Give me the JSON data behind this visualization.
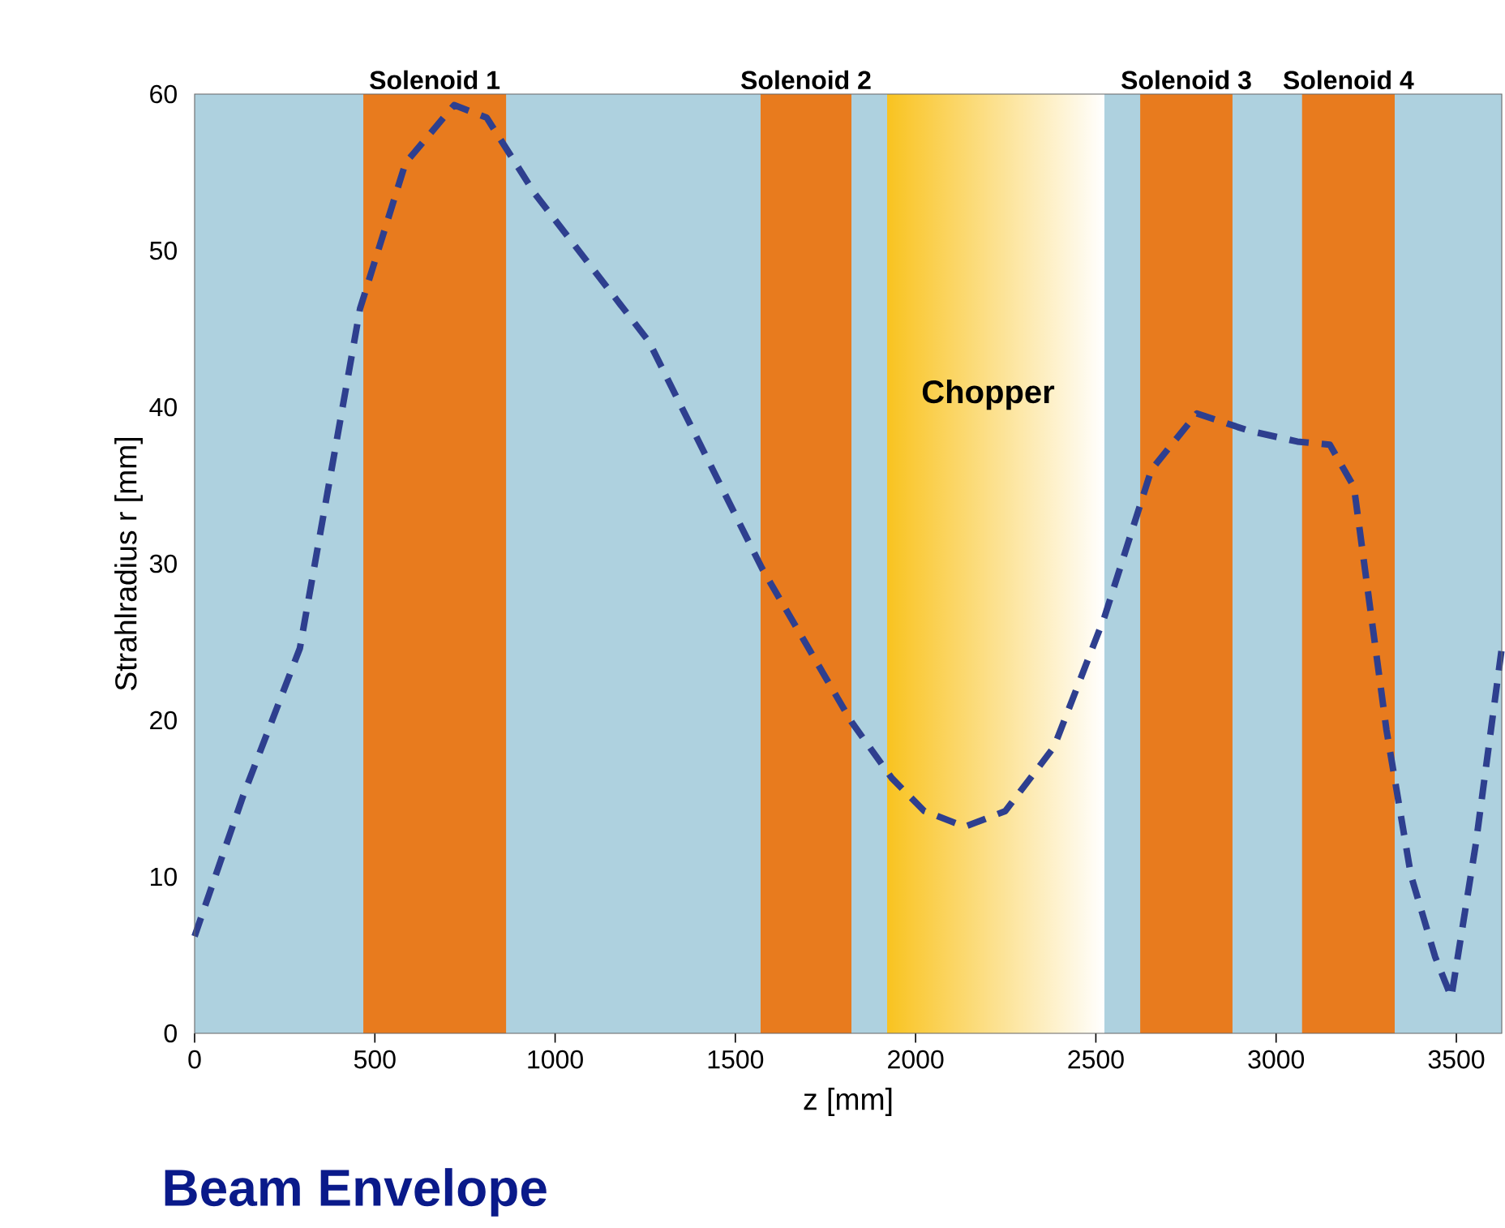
{
  "chart_data": {
    "type": "line",
    "title": "Beam Envelope",
    "xlabel": "z [mm]",
    "ylabel": "Strahlradius r [mm]",
    "x": [
      0,
      135,
      292,
      459,
      585,
      720,
      810,
      945,
      1260,
      1574,
      1822,
      1934,
      2024,
      2137,
      2249,
      2384,
      2524,
      2654,
      2780,
      2924,
      3059,
      3149,
      3216,
      3306,
      3374,
      3441,
      3486,
      3554,
      3626
    ],
    "series": [
      {
        "color": "#2e3f8f",
        "values": [
          6.2,
          15.2,
          24.6,
          46.3,
          55.6,
          59.3,
          58.5,
          53.6,
          44.2,
          29.7,
          19.9,
          16.3,
          14.2,
          13.2,
          14.2,
          18.3,
          26.6,
          36.0,
          39.6,
          38.5,
          37.8,
          37.6,
          34.9,
          19.4,
          10.1,
          4.9,
          2.3,
          12.1,
          24.6
        ]
      }
    ],
    "line_style": "dashed",
    "marker": "none",
    "xlim": [
      0,
      3626
    ],
    "ylim": [
      0,
      60
    ],
    "xticks": [
      0,
      500,
      1000,
      1500,
      2000,
      2500,
      3000,
      3500
    ],
    "yticks": [
      0,
      10,
      20,
      30,
      40,
      50,
      60
    ],
    "bands": [
      {
        "axis": "x",
        "from": 468,
        "to": 864,
        "label": "Solenoid 1",
        "color": "#e87b1e"
      },
      {
        "axis": "x",
        "from": 1570,
        "to": 1822,
        "label": "Solenoid 2",
        "color": "#e87b1e"
      },
      {
        "axis": "x",
        "from": 1921,
        "to": 2524,
        "color": "#f9c320"
      },
      {
        "axis": "x",
        "from": 2623,
        "to": 2879,
        "label": "Solenoid 3",
        "color": "#e87b1e"
      },
      {
        "axis": "x",
        "from": 3072,
        "to": 3329,
        "label": "Solenoid 4",
        "color": "#e87b1e"
      }
    ],
    "annotations": [
      "Chopper"
    ]
  }
}
